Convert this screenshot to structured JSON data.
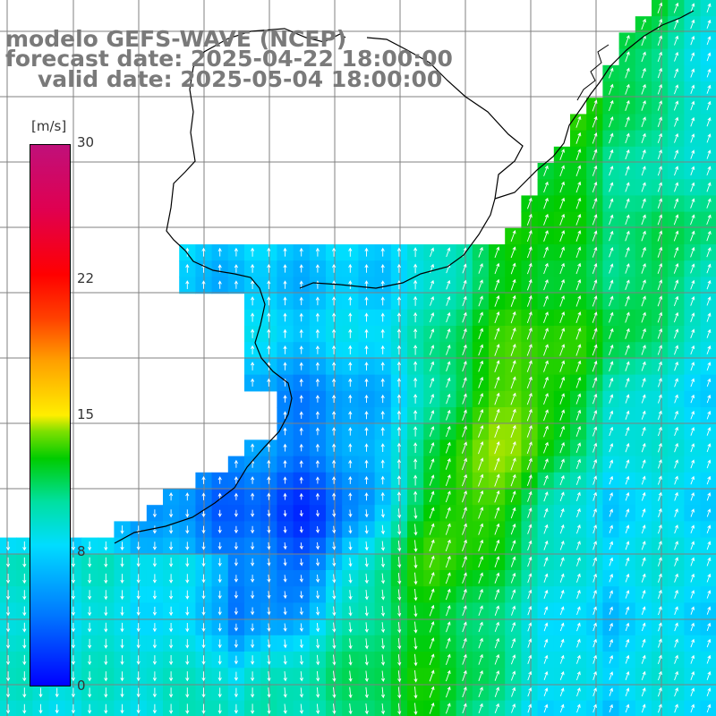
{
  "title": {
    "line1": "modelo GEFS-WAVE (NCEP)",
    "line2": "forecast date: 2025-04-22 18:00:00",
    "line3": "valid date: 2025-05-04 18:00:00"
  },
  "colorbar": {
    "unit": "[m/s]",
    "ticks": [
      "30",
      "22",
      "15",
      "8",
      "0"
    ],
    "range": [
      0,
      30
    ],
    "colors": [
      "#0000ff",
      "#0077ff",
      "#00ddff",
      "#00e0a0",
      "#00cc00",
      "#7ee000",
      "#ffee00",
      "#ffa000",
      "#ff4000",
      "#ff0000",
      "#e00050",
      "#c0107a"
    ]
  },
  "map": {
    "grid_lines": true,
    "arrow_color": "#ffffff",
    "land_color": "#ffffff",
    "grid_color": "#808080",
    "wind_regime": "southerly flow, strongest (~12-14 m/s) in a band along the shelf break, weakest (~0-3 m/s) near the coast"
  }
}
